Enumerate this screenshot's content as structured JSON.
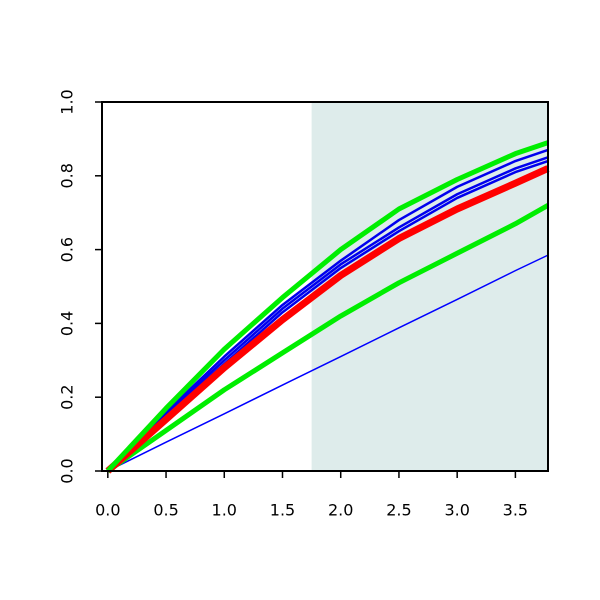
{
  "chart_data": {
    "type": "line",
    "x": [
      0,
      0.5,
      1,
      1.5,
      2,
      2.5,
      3,
      3.5,
      3.78
    ],
    "series": [
      {
        "color": "#0000ff",
        "width": 1.5,
        "values": [
          0,
          0.078,
          0.155,
          0.233,
          0.31,
          0.388,
          0.465,
          0.543,
          0.585
        ]
      },
      {
        "color": "#00ee00",
        "width": 5,
        "values": [
          0,
          0.11,
          0.22,
          0.32,
          0.42,
          0.51,
          0.59,
          0.67,
          0.72
        ]
      },
      {
        "color": "#0000ee",
        "width": 2.5,
        "values": [
          0,
          0.15,
          0.29,
          0.43,
          0.55,
          0.65,
          0.74,
          0.81,
          0.84
        ]
      },
      {
        "color": "#0000ee",
        "width": 2.5,
        "values": [
          0,
          0.155,
          0.3,
          0.44,
          0.56,
          0.66,
          0.75,
          0.82,
          0.85
        ]
      },
      {
        "color": "#0000ee",
        "width": 2.5,
        "values": [
          0,
          0.16,
          0.31,
          0.45,
          0.57,
          0.68,
          0.77,
          0.84,
          0.87
        ]
      },
      {
        "color": "#ff0000",
        "width": 7,
        "values": [
          0,
          0.14,
          0.28,
          0.41,
          0.53,
          0.63,
          0.71,
          0.78,
          0.82
        ]
      },
      {
        "color": "#00ee00",
        "width": 5,
        "values": [
          0,
          0.17,
          0.33,
          0.47,
          0.6,
          0.71,
          0.79,
          0.86,
          0.89
        ]
      }
    ],
    "shaded_xrange": [
      1.75,
      3.78
    ],
    "shade_color": "#deeceb",
    "xlim": [
      -0.05,
      3.78
    ],
    "ylim": [
      0,
      1
    ],
    "xticks": [
      {
        "value": 0,
        "label": "0.0"
      },
      {
        "value": 0.5,
        "label": "0.5"
      },
      {
        "value": 1,
        "label": "1.0"
      },
      {
        "value": 1.5,
        "label": "1.5"
      },
      {
        "value": 2,
        "label": "2.0"
      },
      {
        "value": 2.5,
        "label": "2.5"
      },
      {
        "value": 3,
        "label": "3.0"
      },
      {
        "value": 3.5,
        "label": "3.5"
      }
    ],
    "yticks": [
      {
        "value": 0,
        "label": "0.0"
      },
      {
        "value": 0.2,
        "label": "0.2"
      },
      {
        "value": 0.4,
        "label": "0.4"
      },
      {
        "value": 0.6,
        "label": "0.6"
      },
      {
        "value": 0.8,
        "label": "0.8"
      },
      {
        "value": 1,
        "label": "1.0"
      }
    ]
  }
}
